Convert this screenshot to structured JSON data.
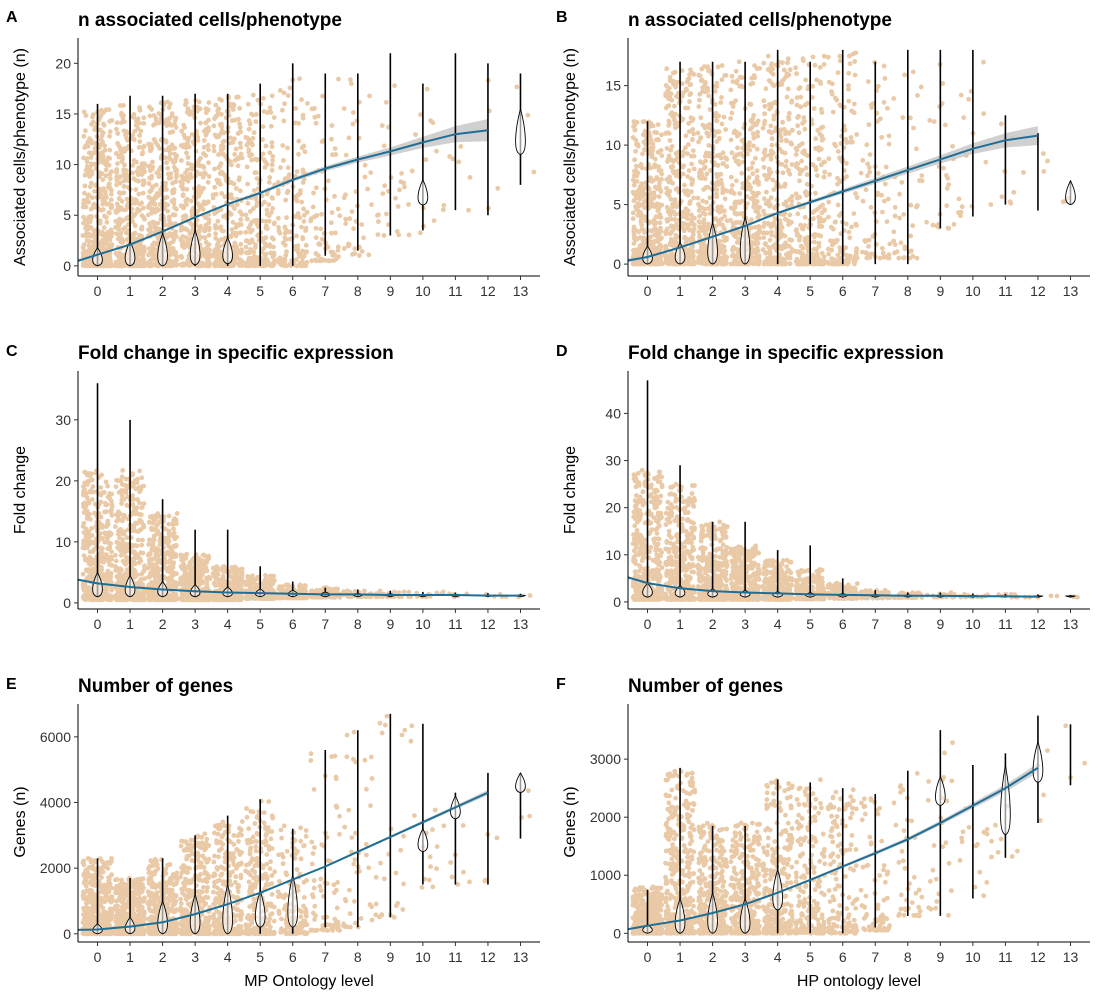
{
  "figure": {
    "x_categories": [
      "0",
      "1",
      "2",
      "3",
      "4",
      "5",
      "6",
      "7",
      "8",
      "9",
      "10",
      "11",
      "12",
      "13"
    ],
    "xlabel_left": "MP Ontology level",
    "xlabel_right": "HP ontology level",
    "colors": {
      "points": "#e9c9a6",
      "trend": "#1f6e96",
      "ribbon": "#c8c8c8",
      "lines": "#000000"
    }
  },
  "chart_data": [
    {
      "panel": "A",
      "type": "scatter",
      "title": "n associated cells/phenotype",
      "ylabel": "Associated cells/phenotype (n)",
      "xlabel": "",
      "categories": [
        "0",
        "1",
        "2",
        "3",
        "4",
        "5",
        "6",
        "7",
        "8",
        "9",
        "10",
        "11",
        "12",
        "13"
      ],
      "ylim": [
        -1,
        22.5
      ],
      "yticks": [
        "0",
        "5",
        "10",
        "15",
        "20"
      ],
      "ytick_values": [
        0,
        5,
        10,
        15,
        20
      ],
      "point_upper": [
        15.5,
        16,
        16.2,
        16.5,
        16.8,
        17,
        18.5,
        19,
        19,
        19.5,
        20,
        21,
        20,
        19
      ],
      "point_lower": [
        0,
        0,
        0,
        0,
        0,
        0,
        0,
        0.5,
        1,
        3,
        3,
        5.5,
        5,
        8
      ],
      "point_density": [
        420,
        380,
        360,
        320,
        280,
        220,
        140,
        70,
        40,
        25,
        15,
        8,
        4,
        3
      ],
      "whisker_low": [
        0,
        0,
        0,
        0,
        0,
        0,
        0,
        1,
        1.5,
        3,
        3.5,
        5.5,
        5,
        8
      ],
      "whisker_high": [
        16,
        16.8,
        16.8,
        17,
        17,
        18,
        20,
        19,
        19,
        21,
        18,
        21,
        20,
        19
      ],
      "violin_low": [
        0,
        0,
        0,
        0.1,
        0.2,
        0,
        0,
        0,
        0,
        0,
        6,
        0,
        0,
        11
      ],
      "violin_high": [
        1.8,
        2.4,
        3.2,
        3.5,
        2.8,
        0,
        0,
        0,
        0,
        0,
        8.5,
        0,
        0,
        15.5
      ],
      "trend_x": [
        -0.6,
        0,
        1,
        2,
        3,
        4,
        5,
        6,
        7,
        8,
        9,
        10,
        11,
        12
      ],
      "trend_y": [
        0.5,
        1.1,
        2.1,
        3.4,
        4.8,
        6.1,
        7.2,
        8.5,
        9.6,
        10.5,
        11.3,
        12.2,
        13.0,
        13.4
      ],
      "ribbon_halfwidth": [
        0.15,
        0.1,
        0.1,
        0.1,
        0.1,
        0.1,
        0.15,
        0.2,
        0.25,
        0.3,
        0.4,
        0.55,
        0.8,
        1.1
      ]
    },
    {
      "panel": "B",
      "type": "scatter",
      "title": "n associated cells/phenotype",
      "ylabel": "Associated cells/phenotype (n)",
      "xlabel": "",
      "categories": [
        "0",
        "1",
        "2",
        "3",
        "4",
        "5",
        "6",
        "7",
        "8",
        "9",
        "10",
        "11",
        "12",
        "13"
      ],
      "ylim": [
        -1,
        19
      ],
      "yticks": [
        "0",
        "5",
        "10",
        "15"
      ],
      "ytick_values": [
        0,
        5,
        10,
        15
      ],
      "point_upper": [
        12,
        16.5,
        17,
        17,
        17.5,
        17.5,
        18,
        17,
        18,
        17.5,
        18,
        15,
        11,
        7.5
      ],
      "point_lower": [
        0,
        0,
        0,
        0,
        0,
        0,
        0,
        0.5,
        0.5,
        3,
        4,
        5,
        4.5,
        5
      ],
      "point_density": [
        420,
        380,
        360,
        320,
        280,
        220,
        140,
        70,
        40,
        25,
        15,
        8,
        4,
        3
      ],
      "whisker_low": [
        0,
        0,
        0,
        0,
        0,
        0,
        0,
        0,
        0,
        3,
        4,
        5,
        4.5,
        5
      ],
      "whisker_high": [
        12,
        17,
        17,
        17,
        18,
        17,
        18,
        17,
        18,
        18,
        18,
        12.5,
        11,
        7
      ],
      "violin_low": [
        0,
        0,
        0,
        0,
        0,
        0,
        0,
        0,
        0,
        0,
        0,
        0,
        0,
        5
      ],
      "violin_high": [
        1.5,
        1.8,
        3.5,
        4.0,
        0,
        0,
        0,
        0,
        0,
        0,
        0,
        0,
        0,
        7
      ],
      "trend_x": [
        -0.6,
        0,
        1,
        2,
        3,
        4,
        5,
        6,
        7,
        8,
        9,
        10,
        11,
        12
      ],
      "trend_y": [
        0.3,
        0.6,
        1.4,
        2.3,
        3.2,
        4.3,
        5.2,
        6.1,
        7.0,
        7.9,
        8.8,
        9.7,
        10.4,
        10.8
      ],
      "ribbon_halfwidth": [
        0.15,
        0.1,
        0.1,
        0.1,
        0.1,
        0.1,
        0.15,
        0.2,
        0.25,
        0.3,
        0.35,
        0.45,
        0.6,
        0.8
      ]
    },
    {
      "panel": "C",
      "type": "scatter",
      "title": "Fold change in specific expression",
      "ylabel": "Fold change",
      "xlabel": "",
      "categories": [
        "0",
        "1",
        "2",
        "3",
        "4",
        "5",
        "6",
        "7",
        "8",
        "9",
        "10",
        "11",
        "12",
        "13"
      ],
      "ylim": [
        -1,
        38
      ],
      "yticks": [
        "0",
        "10",
        "20",
        "30"
      ],
      "ytick_values": [
        0,
        10,
        20,
        30
      ],
      "point_upper": [
        22,
        22,
        15,
        8,
        6,
        4.5,
        3,
        2.5,
        2,
        2,
        1.8,
        1.8,
        1.6,
        1.5
      ],
      "point_lower": [
        0.5,
        0.5,
        0.5,
        0.5,
        0.5,
        0.7,
        0.8,
        0.9,
        1,
        1,
        1,
        1,
        1,
        1
      ],
      "point_density": [
        420,
        380,
        360,
        320,
        280,
        220,
        140,
        70,
        40,
        25,
        15,
        8,
        4,
        3
      ],
      "whisker_low": [
        1,
        1,
        1,
        1,
        1,
        1,
        1,
        1,
        1,
        1,
        1,
        1,
        1,
        1
      ],
      "whisker_high": [
        36,
        30,
        17,
        12,
        12,
        6,
        3.5,
        2.5,
        2.2,
        2,
        1.8,
        1.7,
        1.6,
        1.5
      ],
      "violin_low": [
        1,
        1,
        1,
        1,
        1,
        1,
        1,
        1,
        1,
        1,
        1,
        1,
        1,
        1
      ],
      "violin_high": [
        5,
        4.5,
        3.5,
        3,
        2.6,
        2.3,
        2.1,
        1.8,
        1.6,
        1.5,
        1.4,
        1.4,
        1.3,
        1.3
      ],
      "trend_x": [
        -0.6,
        0,
        1,
        2,
        3,
        4,
        5,
        6,
        7,
        8,
        9,
        10,
        11,
        12,
        13
      ],
      "trend_y": [
        3.8,
        3.2,
        2.6,
        2.2,
        1.9,
        1.7,
        1.6,
        1.5,
        1.4,
        1.4,
        1.3,
        1.3,
        1.3,
        1.2,
        1.2
      ],
      "ribbon_halfwidth": [
        0.2,
        0.15,
        0.1,
        0.1,
        0.1,
        0.1,
        0.1,
        0.1,
        0.1,
        0.1,
        0.1,
        0.1,
        0.1,
        0.1,
        0.1
      ]
    },
    {
      "panel": "D",
      "type": "scatter",
      "title": "Fold change in specific expression",
      "ylabel": "Fold change",
      "xlabel": "",
      "categories": [
        "0",
        "1",
        "2",
        "3",
        "4",
        "5",
        "6",
        "7",
        "8",
        "9",
        "10",
        "11",
        "12",
        "13"
      ],
      "ylim": [
        -1.5,
        49
      ],
      "yticks": [
        "0",
        "10",
        "20",
        "30",
        "40"
      ],
      "ytick_values": [
        0,
        10,
        20,
        30,
        40
      ],
      "point_upper": [
        28,
        25,
        17,
        12,
        9,
        7,
        4,
        2.5,
        2,
        2,
        1.8,
        1.7,
        1.5,
        1.5
      ],
      "point_lower": [
        0.5,
        0.5,
        0.5,
        0.5,
        0.5,
        0.6,
        0.7,
        0.8,
        0.9,
        1,
        1,
        1,
        1,
        1
      ],
      "point_density": [
        420,
        380,
        360,
        320,
        280,
        220,
        140,
        70,
        40,
        25,
        15,
        8,
        4,
        3
      ],
      "whisker_low": [
        1,
        1,
        1,
        1,
        1,
        1,
        1,
        1,
        1,
        1,
        1,
        1,
        1,
        1
      ],
      "whisker_high": [
        47,
        29,
        17,
        17,
        11,
        12,
        5,
        2.5,
        2,
        2,
        1.8,
        1.7,
        1.6,
        1.5
      ],
      "violin_low": [
        1,
        1,
        1,
        1,
        1,
        1,
        1,
        1,
        1,
        1,
        1,
        1,
        1,
        1
      ],
      "violin_high": [
        4,
        3.5,
        2.8,
        2.5,
        2.2,
        2,
        1.8,
        1.6,
        1.5,
        1.4,
        1.4,
        1.3,
        1.3,
        1.3
      ],
      "trend_x": [
        -0.6,
        0,
        1,
        2,
        3,
        4,
        5,
        6,
        7,
        8,
        9,
        10,
        11,
        12
      ],
      "trend_y": [
        5.2,
        4.0,
        2.9,
        2.3,
        2.0,
        1.8,
        1.6,
        1.5,
        1.4,
        1.3,
        1.3,
        1.2,
        1.2,
        1.1
      ],
      "ribbon_halfwidth": [
        0.3,
        0.2,
        0.15,
        0.1,
        0.1,
        0.1,
        0.1,
        0.1,
        0.1,
        0.1,
        0.1,
        0.1,
        0.1,
        0.1
      ]
    },
    {
      "panel": "E",
      "type": "scatter",
      "title": "Number of genes",
      "ylabel": "Genes (n)",
      "xlabel": "MP Ontology level",
      "categories": [
        "0",
        "1",
        "2",
        "3",
        "4",
        "5",
        "6",
        "7",
        "8",
        "9",
        "10",
        "11",
        "12",
        "13"
      ],
      "ylim": [
        -250,
        7000
      ],
      "yticks": [
        "0",
        "2000",
        "4000",
        "6000"
      ],
      "ytick_values": [
        0,
        2000,
        4000,
        6000
      ],
      "point_upper": [
        2300,
        1700,
        2300,
        3100,
        3500,
        4100,
        3300,
        5600,
        6200,
        6700,
        6400,
        4300,
        4900,
        4900
      ],
      "point_lower": [
        0,
        0,
        0,
        0,
        0,
        0,
        0,
        100,
        200,
        500,
        1400,
        1500,
        1500,
        2900
      ],
      "point_density": [
        420,
        380,
        360,
        320,
        280,
        220,
        140,
        70,
        40,
        25,
        15,
        8,
        4,
        3
      ],
      "whisker_low": [
        0,
        0,
        0,
        0,
        0,
        0,
        0,
        200,
        200,
        500,
        1500,
        1500,
        1500,
        2900
      ],
      "whisker_high": [
        2300,
        1700,
        2300,
        3000,
        3600,
        4100,
        3200,
        5600,
        6200,
        6700,
        6400,
        4300,
        4900,
        4900
      ],
      "violin_low": [
        0,
        0,
        0,
        0,
        0,
        200,
        200,
        0,
        0,
        0,
        2500,
        3500,
        0,
        4300
      ],
      "violin_high": [
        300,
        500,
        1000,
        1200,
        1500,
        1300,
        1800,
        0,
        0,
        0,
        3200,
        4200,
        0,
        4900
      ],
      "trend_x": [
        -0.6,
        0,
        1,
        2,
        3,
        4,
        5,
        6,
        7,
        8,
        9,
        10,
        11,
        12
      ],
      "trend_y": [
        120,
        130,
        220,
        350,
        600,
        900,
        1250,
        1650,
        2050,
        2500,
        2950,
        3400,
        3850,
        4300
      ],
      "ribbon_halfwidth": [
        10,
        10,
        10,
        10,
        10,
        15,
        20,
        25,
        30,
        30,
        40,
        50,
        60,
        80
      ]
    },
    {
      "panel": "F",
      "type": "scatter",
      "title": "Number of genes",
      "ylabel": "Genes (n)",
      "xlabel": "HP ontology level",
      "categories": [
        "0",
        "1",
        "2",
        "3",
        "4",
        "5",
        "6",
        "7",
        "8",
        "9",
        "10",
        "11",
        "12",
        "13"
      ],
      "ylim": [
        -150,
        3950
      ],
      "yticks": [
        "0",
        "1000",
        "2000",
        "3000"
      ],
      "ytick_values": [
        0,
        1000,
        2000,
        3000
      ],
      "point_upper": [
        800,
        2800,
        1900,
        1900,
        2700,
        2700,
        2500,
        2400,
        2800,
        3500,
        2900,
        3100,
        3700,
        3600
      ],
      "point_lower": [
        0,
        0,
        0,
        0,
        0,
        0,
        0,
        50,
        300,
        300,
        600,
        1300,
        1900,
        2550
      ],
      "point_density": [
        420,
        380,
        360,
        320,
        280,
        220,
        140,
        70,
        40,
        25,
        15,
        8,
        4,
        3
      ],
      "whisker_low": [
        0,
        0,
        0,
        0,
        0,
        0,
        0,
        100,
        300,
        300,
        600,
        1300,
        1900,
        2550
      ],
      "whisker_high": [
        750,
        2850,
        1850,
        1850,
        2650,
        2600,
        2500,
        2400,
        2800,
        3500,
        2900,
        3100,
        3750,
        3600
      ],
      "violin_low": [
        0,
        0,
        0,
        0,
        400,
        0,
        0,
        0,
        0,
        2200,
        0,
        1700,
        2600,
        0
      ],
      "violin_high": [
        150,
        600,
        700,
        600,
        1100,
        0,
        0,
        0,
        0,
        2700,
        0,
        2900,
        3300,
        0
      ],
      "trend_x": [
        -0.6,
        0,
        1,
        2,
        3,
        4,
        5,
        6,
        7,
        8,
        9,
        10,
        11,
        12
      ],
      "trend_y": [
        70,
        130,
        220,
        350,
        500,
        700,
        920,
        1150,
        1380,
        1620,
        1900,
        2200,
        2500,
        2850
      ],
      "ribbon_halfwidth": [
        10,
        10,
        10,
        10,
        10,
        15,
        20,
        25,
        30,
        35,
        40,
        50,
        60,
        80
      ]
    }
  ]
}
